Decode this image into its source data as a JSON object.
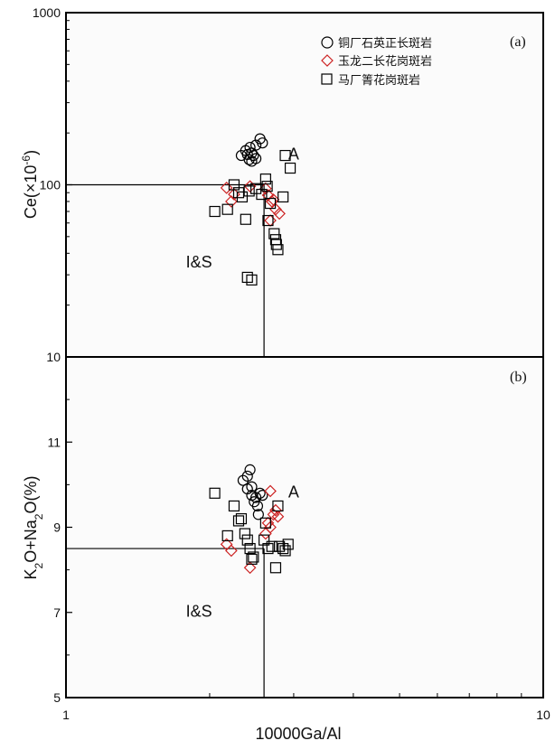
{
  "chart_data": [
    {
      "type": "scatter",
      "panel_label": "(a)",
      "xscale": "log",
      "yscale": "log",
      "xlim": [
        1,
        10
      ],
      "ylim": [
        10,
        1000
      ],
      "xlabel": "",
      "ylabel": {
        "base": "Ce(",
        "times": "×10",
        "exp": "-6",
        "close": ")"
      },
      "yticks": [
        {
          "value": 10,
          "label": "10"
        },
        {
          "value": 100,
          "label": "100"
        },
        {
          "value": 1000,
          "label": "1000"
        }
      ],
      "region_labels": [
        {
          "text": "A",
          "x": 3.0,
          "y": 140
        },
        {
          "text": "I&S",
          "x": 1.9,
          "y": 33
        }
      ],
      "boundary": {
        "x": 2.6,
        "y": 100
      },
      "legend_position": "top-right",
      "series": [
        {
          "name": "铜厂石英正长斑岩",
          "marker": "circle",
          "color": "#000000",
          "points": [
            [
              2.33,
              148
            ],
            [
              2.38,
              158
            ],
            [
              2.43,
              165
            ],
            [
              2.45,
              153
            ],
            [
              2.5,
              170
            ],
            [
              2.42,
              140
            ],
            [
              2.47,
              148
            ],
            [
              2.5,
              142
            ],
            [
              2.55,
              185
            ],
            [
              2.58,
              175
            ],
            [
              2.45,
              137
            ],
            [
              2.4,
              150
            ]
          ]
        },
        {
          "name": "玉龙二长花岗斑岩",
          "marker": "diamond",
          "color": "#cc2222",
          "points": [
            [
              2.17,
              96
            ],
            [
              2.25,
              88
            ],
            [
              2.22,
              80
            ],
            [
              2.43,
              98
            ],
            [
              2.62,
              95
            ],
            [
              2.65,
              87
            ],
            [
              2.7,
              80
            ],
            [
              2.75,
              72
            ],
            [
              2.8,
              68
            ],
            [
              2.68,
              62
            ],
            [
              2.72,
              82
            ]
          ]
        },
        {
          "name": "马厂箐花岗斑岩",
          "marker": "square",
          "color": "#000000",
          "points": [
            [
              2.05,
              70
            ],
            [
              2.18,
              72
            ],
            [
              2.25,
              100
            ],
            [
              2.3,
              90
            ],
            [
              2.34,
              85
            ],
            [
              2.38,
              63
            ],
            [
              2.42,
              92
            ],
            [
              2.5,
              95
            ],
            [
              2.57,
              88
            ],
            [
              2.62,
              108
            ],
            [
              2.64,
              98
            ],
            [
              2.65,
              62
            ],
            [
              2.68,
              78
            ],
            [
              2.73,
              52
            ],
            [
              2.75,
              48
            ],
            [
              2.76,
              45
            ],
            [
              2.78,
              42
            ],
            [
              2.85,
              85
            ],
            [
              2.88,
              148
            ],
            [
              2.95,
              125
            ],
            [
              2.4,
              29
            ],
            [
              2.45,
              28
            ]
          ]
        }
      ]
    },
    {
      "type": "scatter",
      "panel_label": "(b)",
      "xscale": "log",
      "yscale": "linear",
      "xlim": [
        1,
        10
      ],
      "ylim": [
        5,
        13
      ],
      "xlabel": "10000Ga/Al",
      "ylabel": {
        "k": "K",
        "k_sub": "2",
        "mid": "O+Na",
        "na_sub": "2",
        "end": "O(%)"
      },
      "xticks": [
        {
          "value": 1,
          "label": "1"
        },
        {
          "value": 10,
          "label": "10"
        }
      ],
      "yticks": [
        {
          "value": 5,
          "label": "5"
        },
        {
          "value": 7,
          "label": "7"
        },
        {
          "value": 9,
          "label": "9"
        },
        {
          "value": 11,
          "label": "11"
        }
      ],
      "region_labels": [
        {
          "text": "A",
          "x": 3.0,
          "y": 9.7
        },
        {
          "text": "I&S",
          "x": 1.9,
          "y": 6.9
        }
      ],
      "boundary": {
        "x": 2.6,
        "y": 8.5
      },
      "series": [
        {
          "name": "铜厂石英正长斑岩",
          "marker": "circle",
          "color": "#000000",
          "points": [
            [
              2.35,
              10.1
            ],
            [
              2.4,
              10.2
            ],
            [
              2.43,
              10.35
            ],
            [
              2.45,
              9.95
            ],
            [
              2.5,
              9.7
            ],
            [
              2.55,
              9.8
            ],
            [
              2.45,
              9.75
            ],
            [
              2.48,
              9.6
            ],
            [
              2.4,
              9.9
            ],
            [
              2.52,
              9.5
            ],
            [
              2.58,
              9.75
            ],
            [
              2.53,
              9.3
            ]
          ]
        },
        {
          "name": "玉龙二长花岗斑岩",
          "marker": "diamond",
          "color": "#cc2222",
          "points": [
            [
              2.17,
              8.6
            ],
            [
              2.22,
              8.45
            ],
            [
              2.43,
              8.05
            ],
            [
              2.65,
              9.1
            ],
            [
              2.68,
              9.0
            ],
            [
              2.72,
              9.3
            ],
            [
              2.75,
              9.4
            ],
            [
              2.78,
              9.25
            ],
            [
              2.68,
              9.85
            ],
            [
              2.62,
              8.85
            ]
          ]
        },
        {
          "name": "马厂箐花岗斑岩",
          "marker": "square",
          "color": "#000000",
          "points": [
            [
              2.05,
              9.8
            ],
            [
              2.18,
              8.8
            ],
            [
              2.25,
              9.5
            ],
            [
              2.3,
              9.15
            ],
            [
              2.33,
              9.2
            ],
            [
              2.37,
              8.85
            ],
            [
              2.4,
              8.7
            ],
            [
              2.43,
              8.5
            ],
            [
              2.45,
              8.25
            ],
            [
              2.47,
              8.3
            ],
            [
              2.62,
              9.1
            ],
            [
              2.65,
              8.5
            ],
            [
              2.7,
              8.55
            ],
            [
              2.75,
              8.05
            ],
            [
              2.78,
              9.5
            ],
            [
              2.8,
              8.55
            ],
            [
              2.85,
              8.5
            ],
            [
              2.88,
              8.45
            ],
            [
              2.92,
              8.6
            ],
            [
              2.6,
              8.7
            ]
          ]
        }
      ]
    }
  ]
}
